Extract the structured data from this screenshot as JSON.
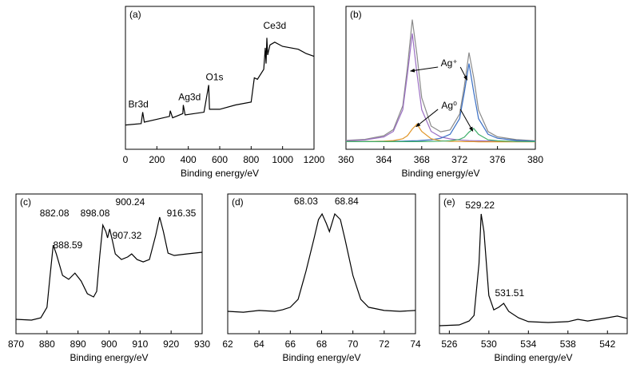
{
  "chart_data": [
    {
      "type": "line",
      "label": "(a)",
      "xlabel": "Binding energy/eV",
      "xlim": [
        0,
        1200
      ],
      "xticks": [
        0,
        200,
        400,
        600,
        800,
        1000,
        1200
      ],
      "ylim": [
        0,
        100
      ],
      "x": [
        0,
        100,
        110,
        120,
        200,
        280,
        285,
        300,
        365,
        368,
        380,
        500,
        530,
        535,
        600,
        700,
        800,
        820,
        840,
        880,
        890,
        895,
        900,
        905,
        920,
        950,
        1000,
        1100,
        1150,
        1200
      ],
      "series": [
        {
          "color": "#000000",
          "values": [
            17,
            18,
            26,
            19,
            21,
            23,
            27,
            22,
            25,
            31,
            24,
            26,
            45,
            28,
            28,
            31,
            33,
            50,
            49,
            56,
            71,
            60,
            78,
            66,
            73,
            75,
            72,
            70,
            67,
            65
          ]
        }
      ],
      "annotations": [
        {
          "text": "Br3d",
          "x": 82,
          "y": 31
        },
        {
          "text": "Ag3d",
          "x": 408,
          "y": 36
        },
        {
          "text": "O1s",
          "x": 567,
          "y": 50
        },
        {
          "text": "Ce3d",
          "x": 950,
          "y": 86
        }
      ]
    },
    {
      "type": "line",
      "label": "(b)",
      "xlabel": "Binding energy/eV",
      "xlim": [
        360,
        380
      ],
      "xticks": [
        360,
        364,
        368,
        372,
        376,
        380
      ],
      "ylim": [
        0,
        95
      ],
      "x": [
        360,
        362,
        364,
        365,
        366,
        366.5,
        367,
        367.5,
        368,
        369,
        370,
        371,
        372,
        372.5,
        373,
        373.5,
        374,
        375,
        376,
        378,
        380
      ],
      "series": [
        {
          "color": "#8a8a8a",
          "values": [
            5.9,
            6.6,
            9.0,
            13.1,
            28.9,
            54.9,
            86.2,
            62.7,
            34.3,
            15.4,
            11.6,
            12.9,
            23.4,
            41.8,
            64.3,
            47.3,
            26.0,
            11.8,
            8.3,
            6.4,
            5.7
          ]
        },
        {
          "color": "#9b6fc3",
          "values": [
            5.6,
            6.2,
            8.2,
            11.9,
            26.4,
            50.2,
            77,
            50.2,
            26.4,
            11.9,
            8.2,
            6.9,
            6.2,
            6.0,
            5.8,
            5.7,
            5.6,
            5.5,
            5.4,
            5.3,
            5.2
          ]
        },
        {
          "color": "#3a6fc4",
          "values": [
            5.1,
            5.2,
            5.3,
            5.3,
            5.4,
            5.5,
            5.6,
            5.7,
            5.9,
            6.3,
            7.3,
            10.0,
            20.4,
            37.7,
            57,
            37.7,
            20.4,
            10.0,
            7.3,
            5.9,
            5.4
          ]
        },
        {
          "color": "#e0962a",
          "values": [
            5.1,
            5.1,
            5.4,
            5.8,
            7.0,
            9.1,
            13.5,
            16.7,
            11.9,
            7.0,
            5.7,
            5.3,
            5.2,
            5.1,
            5.1,
            5.1,
            5.0,
            5.0,
            5.0,
            5.0,
            5.0
          ]
        },
        {
          "color": "#3fae6a",
          "values": [
            5.1,
            5.1,
            5.1,
            5.1,
            5.1,
            5.1,
            5.1,
            5.1,
            5.1,
            5.2,
            5.4,
            5.7,
            6.6,
            8.0,
            11.4,
            13.8,
            9.9,
            6.3,
            5.6,
            5.2,
            5.1
          ]
        }
      ],
      "annotations": [
        {
          "text": "Ag⁺",
          "x": 370.9,
          "y": 56.8,
          "arrows": [
            [
              366.8,
              52
            ],
            [
              372.8,
              46
            ]
          ]
        },
        {
          "text": "Ag⁰",
          "x": 370.9,
          "y": 28.7,
          "arrows": [
            [
              367.4,
              15
            ],
            [
              373.4,
              12
            ]
          ]
        }
      ]
    },
    {
      "type": "line",
      "label": "(c)",
      "xlabel": "Binding energy/eV",
      "xlim": [
        870,
        930
      ],
      "xticks": [
        870,
        880,
        890,
        900,
        910,
        920,
        930
      ],
      "ylim": [
        0,
        100
      ],
      "x": [
        870,
        875,
        878,
        880,
        881,
        882,
        883,
        885,
        887,
        889,
        891,
        893,
        895,
        896,
        897,
        898,
        899,
        899.5,
        900.2,
        901,
        902,
        904,
        906,
        907.3,
        909,
        911,
        913,
        915,
        916.3,
        917.5,
        919,
        921,
        925,
        930
      ],
      "series": [
        {
          "color": "#000000",
          "values": [
            10.3,
            9.7,
            11.4,
            18.9,
            41.7,
            63.4,
            57.1,
            41.7,
            38.9,
            43.4,
            37.7,
            28.6,
            26.3,
            30.3,
            56,
            77.7,
            73,
            68.6,
            74.9,
            67.4,
            57.1,
            53.1,
            54.9,
            57.1,
            53.1,
            51.4,
            53.1,
            70.3,
            83.4,
            73.1,
            57.7,
            56,
            57.1,
            58.3
          ]
        }
      ],
      "annotations": [
        {
          "text": "882.08",
          "x": 882.4,
          "y": 85.7
        },
        {
          "text": "888.59",
          "x": 886.7,
          "y": 62.9
        },
        {
          "text": "898.08",
          "x": 895.5,
          "y": 85.7
        },
        {
          "text": "900.24",
          "x": 906.8,
          "y": 93.7
        },
        {
          "text": "907.32",
          "x": 905.8,
          "y": 69.7
        },
        {
          "text": "916.35",
          "x": 923.3,
          "y": 85.7
        }
      ]
    },
    {
      "type": "line",
      "label": "(d)",
      "xlabel": "Binding energy/eV",
      "xlim": [
        62,
        74
      ],
      "xticks": [
        62,
        64,
        66,
        68,
        70,
        72,
        74
      ],
      "ylim": [
        0,
        100
      ],
      "x": [
        62,
        63,
        64,
        65,
        65.5,
        66,
        66.5,
        67,
        67.5,
        67.8,
        68.03,
        68.3,
        68.5,
        68.84,
        69.2,
        69.5,
        70,
        70.5,
        71,
        72,
        73,
        74
      ],
      "series": [
        {
          "color": "#000000",
          "values": [
            16,
            15.4,
            16.6,
            16,
            17.1,
            18.9,
            24.6,
            44.6,
            67.4,
            81.7,
            85.7,
            78.9,
            73.1,
            85.7,
            81.7,
            67.4,
            41.7,
            24.6,
            18.9,
            16.6,
            16,
            16.6
          ]
        }
      ],
      "annotations": [
        {
          "text": "68.03",
          "x": 67.0,
          "y": 94.3
        },
        {
          "text": "68.84",
          "x": 69.6,
          "y": 94.3
        }
      ]
    },
    {
      "type": "line",
      "label": "(e)",
      "xlabel": "Binding energy/eV",
      "xlim": [
        525,
        544
      ],
      "xticks": [
        526,
        530,
        534,
        538,
        542
      ],
      "ylim": [
        0,
        100
      ],
      "x": [
        525,
        527,
        528,
        528.5,
        529,
        529.22,
        529.5,
        530,
        530.5,
        531,
        531.5,
        532,
        533,
        534,
        536,
        538,
        539,
        540,
        542,
        543,
        544
      ],
      "series": [
        {
          "color": "#000000",
          "values": [
            5.7,
            6.3,
            9.1,
            13.1,
            50.3,
            85.7,
            73.1,
            27.4,
            17.1,
            18.9,
            21.7,
            16,
            11.4,
            8.6,
            8,
            8.6,
            10.3,
            9.1,
            11.4,
            12.6,
            10.9
          ]
        }
      ],
      "annotations": [
        {
          "text": "529.22",
          "x": 529.1,
          "y": 91.4
        },
        {
          "text": "531.51",
          "x": 532.1,
          "y": 28.6
        }
      ]
    }
  ]
}
